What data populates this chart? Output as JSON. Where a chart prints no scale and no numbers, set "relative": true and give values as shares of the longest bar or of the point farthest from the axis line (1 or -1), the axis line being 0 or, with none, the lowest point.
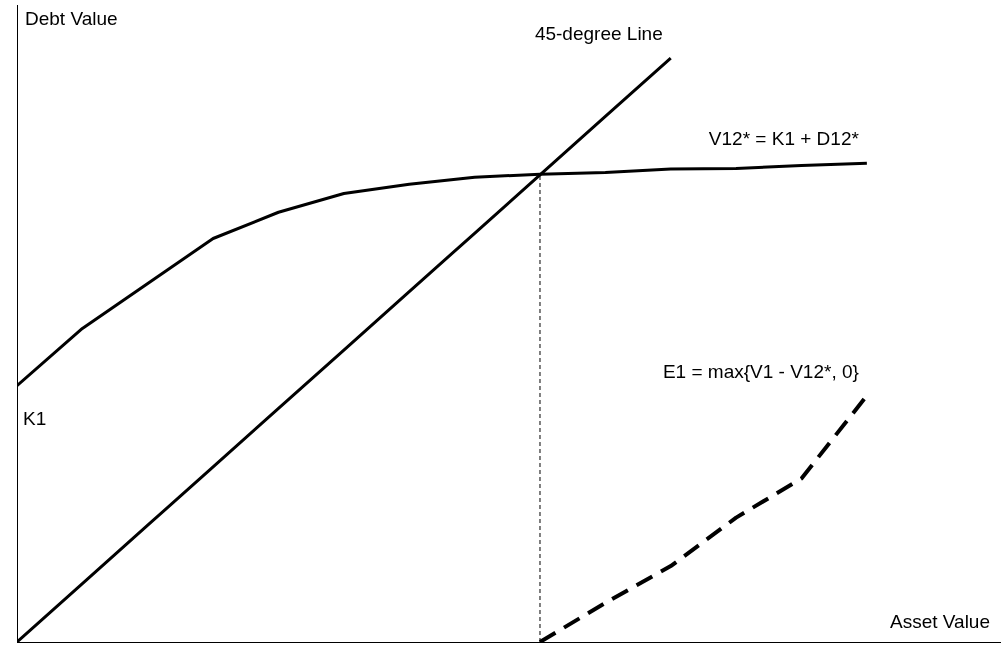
{
  "chart_data": {
    "type": "line",
    "relative": true,
    "xlabel": "Asset Value",
    "ylabel": "Debt Value",
    "categories": [
      null,
      null,
      null,
      null,
      null,
      null,
      null,
      null,
      null,
      null,
      null,
      null,
      null,
      null
    ],
    "legend": false,
    "grid": false,
    "marker": "none",
    "annotations": [
      "K1"
    ],
    "series": [
      {
        "name": "45-degree Line",
        "color": "#000000",
        "line_style": "solid",
        "values": [
          0,
          0.1,
          0.2,
          0.3,
          0.4,
          0.5,
          0.6,
          0.7,
          0.8,
          0.9,
          1.0,
          null,
          null,
          null
        ]
      },
      {
        "name": "V12* = K1 + D12*",
        "color": "#000000",
        "line_style": "solid",
        "values": [
          0.439,
          0.537,
          0.614,
          0.691,
          0.736,
          0.768,
          0.784,
          0.796,
          0.801,
          0.804,
          0.81,
          0.811,
          0.816,
          0.82
        ]
      },
      {
        "name": "E1 = max{V1 - V12*, 0}",
        "color": "#000000",
        "line_style": "dashed",
        "values": [
          null,
          null,
          null,
          null,
          null,
          null,
          null,
          null,
          0,
          0.067,
          0.13,
          0.213,
          0.28,
          0.422
        ]
      }
    ]
  }
}
